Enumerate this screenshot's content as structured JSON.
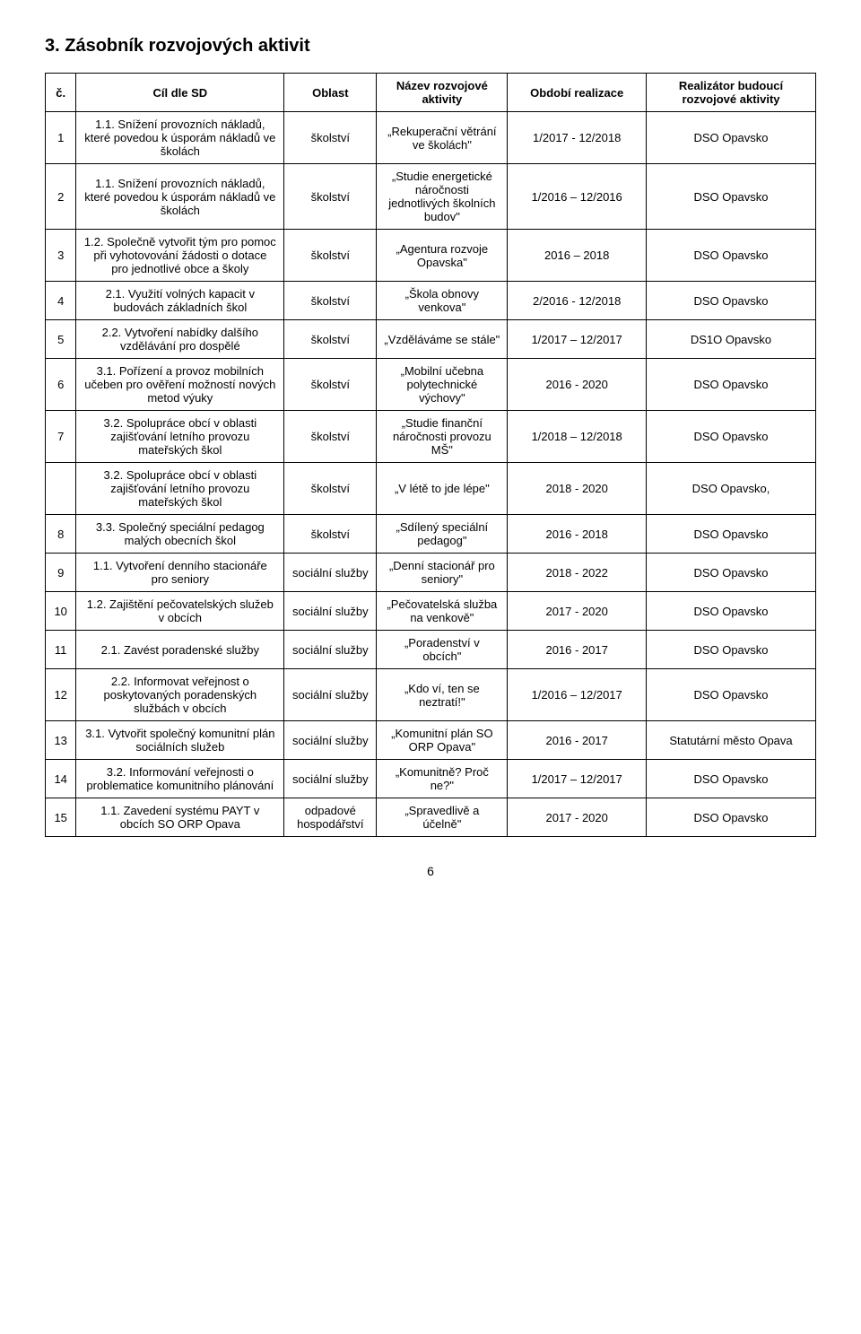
{
  "heading": "3. Zásobník rozvojových aktivit",
  "columns": {
    "num": "č.",
    "cil": "Cíl dle SD",
    "oblast": "Oblast",
    "nazev": "Název rozvojové aktivity",
    "obdobi": "Období realizace",
    "realizator": "Realizátor budoucí rozvojové aktivity"
  },
  "rows": [
    {
      "num": "1",
      "cil": "1.1. Snížení provozních nákladů, které povedou k úsporám nákladů ve školách",
      "oblast": "školství",
      "nazev": "„Rekuperační větrání ve školách\"",
      "obdobi": "1/2017 - 12/2018",
      "realizator": "DSO Opavsko"
    },
    {
      "num": "2",
      "cil": "1.1. Snížení provozních nákladů, které povedou k úsporám nákladů ve školách",
      "oblast": "školství",
      "nazev": "„Studie energetické náročnosti jednotlivých školních budov\"",
      "obdobi": "1/2016 – 12/2016",
      "realizator": "DSO Opavsko"
    },
    {
      "num": "3",
      "cil": "1.2. Společně vytvořit tým pro pomoc při vyhotovování žádosti o dotace pro jednotlivé obce a školy",
      "oblast": "školství",
      "nazev": "„Agentura rozvoje Opavska\"",
      "obdobi": "2016 – 2018",
      "realizator": "DSO Opavsko"
    },
    {
      "num": "4",
      "cil": "2.1. Využití volných kapacit v budovách základních škol",
      "oblast": "školství",
      "nazev": "„Škola obnovy venkova\"",
      "obdobi": "2/2016 - 12/2018",
      "realizator": "DSO Opavsko"
    },
    {
      "num": "5",
      "cil": "2.2. Vytvoření nabídky dalšího vzdělávání pro dospělé",
      "oblast": "školství",
      "nazev": "„Vzděláváme se stále\"",
      "obdobi": "1/2017 – 12/2017",
      "realizator": "DS1O Opavsko"
    },
    {
      "num": "6",
      "cil": "3.1. Pořízení a provoz mobilních učeben pro ověření možností nových metod výuky",
      "oblast": "školství",
      "nazev": "„Mobilní učebna polytechnické výchovy\"",
      "obdobi": "2016 - 2020",
      "realizator": "DSO Opavsko"
    },
    {
      "num": "7",
      "cil": "3.2. Spolupráce obcí v oblasti zajišťování letního provozu mateřských škol",
      "oblast": "školství",
      "nazev": "„Studie finanční náročnosti provozu MŠ\"",
      "obdobi": "1/2018 – 12/2018",
      "realizator": "DSO Opavsko"
    },
    {
      "num": "",
      "cil": "3.2. Spolupráce obcí v oblasti zajišťování letního provozu mateřských škol",
      "oblast": "školství",
      "nazev": "„V létě to jde lépe\"",
      "obdobi": "2018 - 2020",
      "realizator": "DSO Opavsko,"
    },
    {
      "num": "8",
      "cil": "3.3. Společný speciální pedagog malých obecních škol",
      "oblast": "školství",
      "nazev": "„Sdílený speciální pedagog\"",
      "obdobi": "2016 - 2018",
      "realizator": "DSO Opavsko"
    },
    {
      "num": "9",
      "cil": "1.1. Vytvoření denního stacionáře pro seniory",
      "oblast": "sociální služby",
      "nazev": "„Denní stacionář pro seniory\"",
      "obdobi": "2018 - 2022",
      "realizator": "DSO Opavsko"
    },
    {
      "num": "10",
      "cil": "1.2. Zajištění pečovatelských služeb v obcích",
      "oblast": "sociální služby",
      "nazev": "„Pečovatelská služba na venkově\"",
      "obdobi": "2017 - 2020",
      "realizator": "DSO Opavsko"
    },
    {
      "num": "11",
      "cil": "2.1. Zavést poradenské služby",
      "oblast": "sociální služby",
      "nazev": "„Poradenství v obcích\"",
      "obdobi": "2016 - 2017",
      "realizator": "DSO Opavsko"
    },
    {
      "num": "12",
      "cil": "2.2. Informovat veřejnost o poskytovaných poradenských službách v obcích",
      "oblast": "sociální služby",
      "nazev": "„Kdo ví, ten se neztratí!\"",
      "obdobi": "1/2016 – 12/2017",
      "realizator": "DSO Opavsko"
    },
    {
      "num": "13",
      "cil": "3.1. Vytvořit společný komunitní plán sociálních služeb",
      "oblast": "sociální služby",
      "nazev": "„Komunitní plán SO ORP Opava\"",
      "obdobi": "2016 - 2017",
      "realizator": "Statutární město Opava"
    },
    {
      "num": "14",
      "cil": "3.2. Informování veřejnosti o problematice komunitního plánování",
      "oblast": "sociální služby",
      "nazev": "„Komunitně? Proč ne?\"",
      "obdobi": "1/2017 – 12/2017",
      "realizator": "DSO Opavsko"
    },
    {
      "num": "15",
      "cil": "1.1. Zavedení systému PAYT v obcích SO ORP Opava",
      "oblast": "odpadové hospodářství",
      "nazev": "„Spravedlivě a účelně\"",
      "obdobi": "2017 - 2020",
      "realizator": "DSO Opavsko"
    }
  ],
  "pageNumber": "6",
  "style": {
    "header_bg": "#ffffff",
    "border_color": "#000000",
    "font_size_body": 13,
    "font_size_heading": 20
  }
}
